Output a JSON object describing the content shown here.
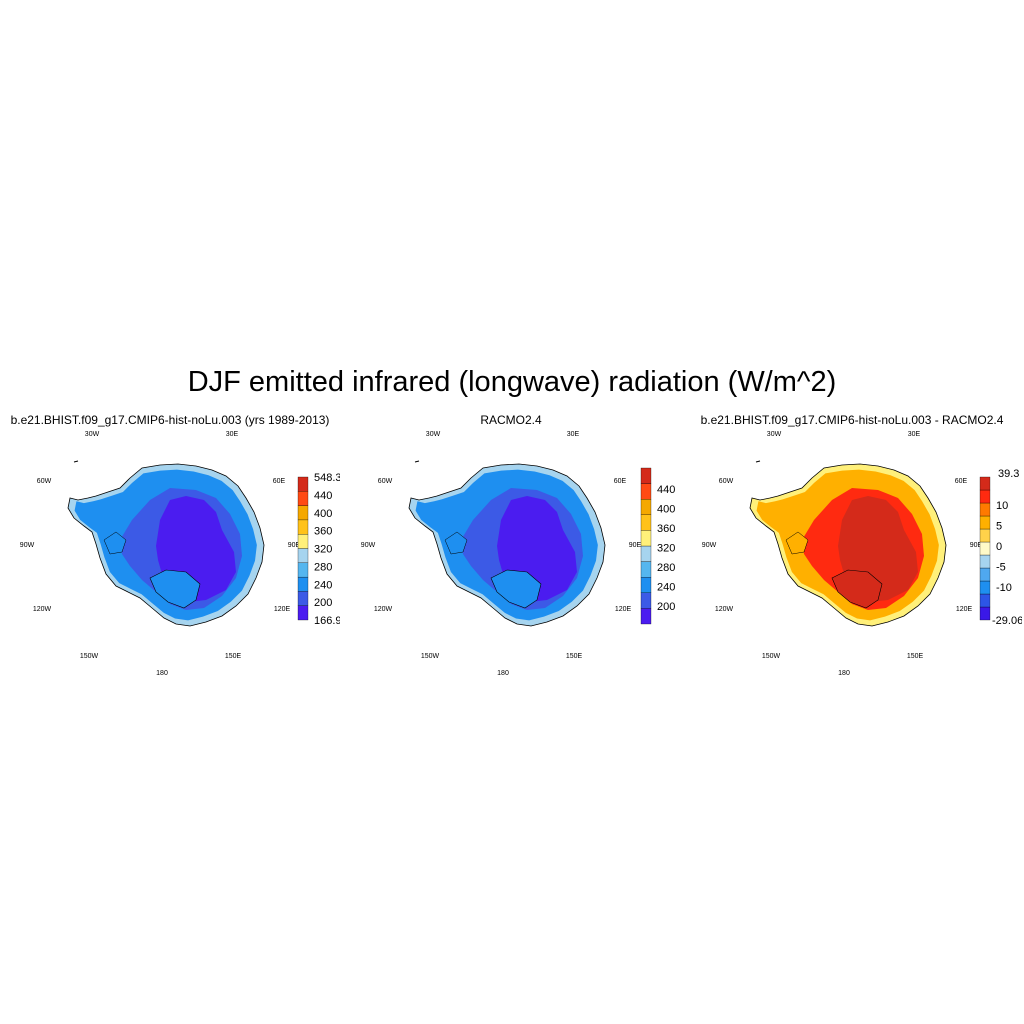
{
  "title": "DJF emitted infrared (longwave) radiation (W/m^2)",
  "lon_labels": [
    "30W",
    "30E",
    "60W",
    "60E",
    "90W",
    "90E",
    "120W",
    "120E",
    "150W",
    "150E",
    "180"
  ],
  "panels": [
    {
      "title": "b.e21.BHIST.f09_g17.CMIP6-hist-noLu.003 (yrs 1989-2013)",
      "colorbar": {
        "colors": [
          "#4b1cf0",
          "#3c5ae6",
          "#1e8ff0",
          "#55b6ef",
          "#a6d4ef",
          "#fff07a",
          "#ffc21a",
          "#f5a800",
          "#ff4a14",
          "#d42a1a"
        ],
        "labels": [
          "166.9",
          "200",
          "240",
          "280",
          "320",
          "360",
          "400",
          "440",
          "548.3"
        ],
        "min_label": "166.9",
        "max_label": "548.3"
      },
      "map_palette": [
        "#4b1cf0",
        "#3c5ae6",
        "#1e8ff0",
        "#a6d4ef"
      ]
    },
    {
      "title": "RACMO2.4",
      "colorbar": {
        "colors": [
          "#4b1cf0",
          "#3c5ae6",
          "#1e8ff0",
          "#55b6ef",
          "#a6d4ef",
          "#fff07a",
          "#ffc21a",
          "#f5a800",
          "#ff4a14",
          "#d42a1a"
        ],
        "labels": [
          "200",
          "240",
          "280",
          "320",
          "360",
          "400",
          "440"
        ],
        "min_label": "",
        "max_label": ""
      },
      "map_palette": [
        "#4b1cf0",
        "#3c5ae6",
        "#1e8ff0",
        "#a6d4ef"
      ]
    },
    {
      "title": "b.e21.BHIST.f09_g17.CMIP6-hist-noLu.003 - RACMO2.4",
      "colorbar": {
        "colors": [
          "#3a18e8",
          "#2d55e6",
          "#1e8ff0",
          "#4fa8f0",
          "#a6d4ef",
          "#fffac8",
          "#ffd24a",
          "#ffb000",
          "#ff7a00",
          "#ff2a10",
          "#d42a1a"
        ],
        "labels": [
          "-10",
          "-5",
          "0",
          "5",
          "10"
        ],
        "min_label": "-29.06",
        "max_label": "39.3"
      },
      "map_palette": [
        "#d42a1a",
        "#ff2a10",
        "#ffb000",
        "#fff07a"
      ]
    }
  ]
}
